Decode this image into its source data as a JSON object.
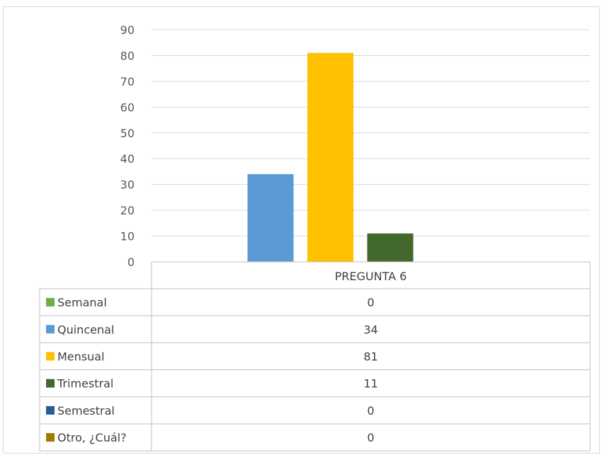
{
  "chart_data": {
    "type": "bar",
    "title": "",
    "xlabel": "",
    "ylabel": "",
    "categories": [
      "PREGUNTA 6"
    ],
    "series": [
      {
        "name": "Semanal",
        "values": [
          0
        ],
        "color": "#70ad47"
      },
      {
        "name": "Quincenal",
        "values": [
          34
        ],
        "color": "#5b9bd5"
      },
      {
        "name": "Mensual",
        "values": [
          81
        ],
        "color": "#ffc000"
      },
      {
        "name": "Trimestral",
        "values": [
          11
        ],
        "color": "#43682b"
      },
      {
        "name": "Semestral",
        "values": [
          0
        ],
        "color": "#255e91"
      },
      {
        "name": "Otro, ¿Cuál?",
        "values": [
          0
        ],
        "color": "#9e7b00"
      }
    ],
    "ylim": [
      0,
      90
    ],
    "yticks": [
      "0",
      "10",
      "20",
      "30",
      "40",
      "50",
      "60",
      "70",
      "80",
      "90"
    ],
    "grid": true,
    "legend": "data-table"
  }
}
